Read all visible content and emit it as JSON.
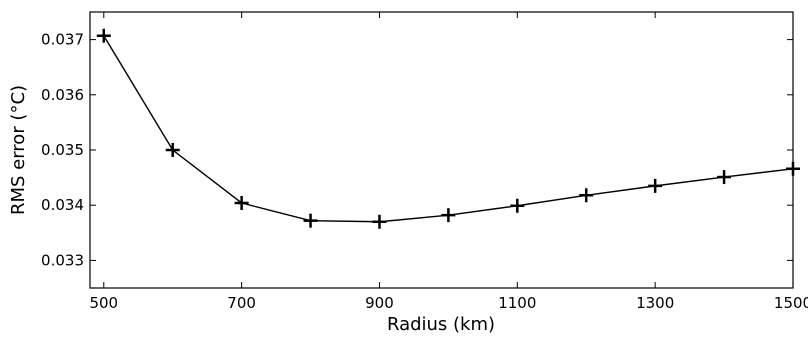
{
  "chart_data": {
    "type": "line",
    "title": "",
    "xlabel": "Radius (km)",
    "ylabel": "RMS error (°C)",
    "xlim": [
      480,
      1500
    ],
    "ylim": [
      0.0325,
      0.0375
    ],
    "x_ticks": [
      500,
      700,
      900,
      1100,
      1300,
      1500
    ],
    "x_tick_labels": [
      "500",
      "700",
      "900",
      "1100",
      "1300",
      "1500"
    ],
    "y_ticks": [
      0.033,
      0.034,
      0.035,
      0.036,
      0.037
    ],
    "y_tick_labels": [
      "0.033",
      "0.034",
      "0.035",
      "0.036",
      "0.037"
    ],
    "grid": false,
    "marker": "plus",
    "line_color": "#000000",
    "series": [
      {
        "x": [
          500,
          600,
          700,
          800,
          900,
          1000,
          1100,
          1200,
          1300,
          1400,
          1500
        ],
        "values": [
          0.03707,
          0.035,
          0.03404,
          0.03372,
          0.0337,
          0.03382,
          0.03399,
          0.03418,
          0.03435,
          0.03451,
          0.03466
        ]
      }
    ]
  }
}
